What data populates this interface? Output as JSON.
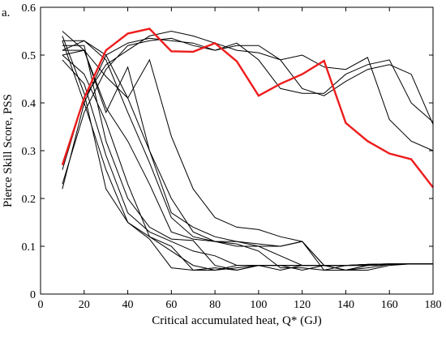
{
  "panel_label": "a.",
  "chart_data": {
    "type": "line",
    "title": "",
    "xlabel": "Critical accumulated heat, Q* (GJ)",
    "ylabel": "Pierce Skill Score, PSS",
    "xlim": [
      0,
      180
    ],
    "ylim": [
      0,
      0.6
    ],
    "xticks": [
      0,
      20,
      40,
      60,
      80,
      100,
      120,
      140,
      160,
      180
    ],
    "yticks": [
      0,
      0.1,
      0.2,
      0.3,
      0.4,
      0.5,
      0.6
    ],
    "grid": false,
    "legend": "none",
    "colors": {
      "highlight": "#ee1c1c",
      "other": "#000000"
    },
    "x": [
      10,
      20,
      30,
      40,
      50,
      60,
      70,
      80,
      90,
      100,
      110,
      120,
      130,
      140,
      150,
      160,
      170,
      180
    ],
    "series": [
      {
        "highlight": true,
        "values": [
          0.27,
          0.41,
          0.51,
          0.545,
          0.555,
          0.508,
          0.507,
          0.525,
          0.487,
          0.415,
          0.44,
          0.46,
          0.488,
          0.358,
          0.32,
          0.294,
          0.282,
          0.223
        ]
      },
      {
        "values": [
          0.22,
          0.4,
          0.5,
          0.525,
          0.535,
          0.53,
          0.525,
          0.51,
          0.525,
          0.49,
          0.43,
          0.42,
          0.42,
          0.46,
          0.48,
          0.49,
          0.4,
          0.36
        ]
      },
      {
        "values": [
          0.23,
          0.38,
          0.47,
          0.52,
          0.53,
          0.535,
          0.52,
          0.51,
          0.52,
          0.52,
          0.49,
          0.43,
          0.415,
          0.445,
          0.47,
          0.48,
          0.46,
          0.355
        ]
      },
      {
        "values": [
          0.26,
          0.41,
          0.48,
          0.51,
          0.54,
          0.55,
          0.54,
          0.525,
          0.51,
          0.505,
          0.49,
          0.5,
          0.475,
          0.47,
          0.495,
          0.365,
          0.32,
          0.3
        ]
      },
      {
        "values": [
          0.55,
          0.51,
          0.455,
          0.41,
          0.49,
          0.33,
          0.22,
          0.16,
          0.14,
          0.135,
          0.12,
          0.11,
          0.05,
          0.05,
          0.06,
          0.062,
          0.063,
          0.063
        ]
      },
      {
        "values": [
          0.53,
          0.53,
          0.5,
          0.41,
          0.3,
          0.17,
          0.14,
          0.12,
          0.11,
          0.1,
          0.08,
          0.06,
          0.06,
          0.05,
          0.05,
          0.06,
          0.063,
          0.063
        ]
      },
      {
        "values": [
          0.51,
          0.53,
          0.49,
          0.38,
          0.275,
          0.16,
          0.12,
          0.11,
          0.1,
          0.1,
          0.1,
          0.11,
          0.06,
          0.06,
          0.062,
          0.063,
          0.063,
          0.063
        ]
      },
      {
        "values": [
          0.5,
          0.51,
          0.38,
          0.475,
          0.3,
          0.2,
          0.13,
          0.11,
          0.11,
          0.105,
          0.1,
          0.11,
          0.06,
          0.06,
          0.062,
          0.063,
          0.063,
          0.063
        ]
      },
      {
        "values": [
          0.51,
          0.51,
          0.39,
          0.32,
          0.23,
          0.13,
          0.115,
          0.11,
          0.105,
          0.09,
          0.055,
          0.055,
          0.05,
          0.06,
          0.062,
          0.063,
          0.063,
          0.063
        ]
      },
      {
        "values": [
          0.52,
          0.52,
          0.32,
          0.2,
          0.14,
          0.115,
          0.112,
          0.06,
          0.05,
          0.06,
          0.06,
          0.06,
          0.06,
          0.05,
          0.055,
          0.062,
          0.063,
          0.063
        ]
      },
      {
        "values": [
          0.49,
          0.44,
          0.29,
          0.17,
          0.13,
          0.11,
          0.09,
          0.08,
          0.06,
          0.06,
          0.06,
          0.05,
          0.06,
          0.05,
          0.06,
          0.062,
          0.063,
          0.063
        ]
      },
      {
        "values": [
          0.54,
          0.42,
          0.22,
          0.15,
          0.12,
          0.09,
          0.06,
          0.05,
          0.055,
          0.06,
          0.06,
          0.06,
          0.06,
          0.06,
          0.06,
          0.062,
          0.063,
          0.063
        ]
      },
      {
        "values": [
          0.53,
          0.4,
          0.26,
          0.15,
          0.115,
          0.055,
          0.05,
          0.055,
          0.05,
          0.06,
          0.06,
          0.06,
          0.06,
          0.06,
          0.06,
          0.062,
          0.063,
          0.063
        ]
      },
      {
        "values": [
          0.5,
          0.46,
          0.36,
          0.23,
          0.12,
          0.1,
          0.05,
          0.05,
          0.06,
          0.06,
          0.05,
          0.06,
          0.06,
          0.06,
          0.06,
          0.062,
          0.063,
          0.063
        ]
      }
    ]
  }
}
